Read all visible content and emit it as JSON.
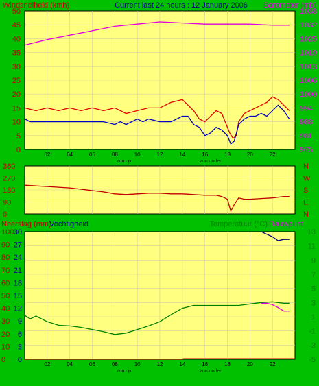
{
  "colors": {
    "background": "#00c000",
    "plot_bg": "#ffff80",
    "grid": "#cfcf9a",
    "wind_label": "#c00000",
    "baro_label": "#e000e0",
    "title": "#000080",
    "dir_label": "#c00000",
    "rain_label": "#c00000",
    "hum_label": "#000080",
    "temp_label": "#008000"
  },
  "chart_data": [
    {
      "id": "wind-baro",
      "type": "line",
      "title": "Current last 24 hours : 12 January 2006",
      "left_label": "Windsnelheid (kmh)",
      "right_label": "Barometer (mb)",
      "x_ticks": [
        "02",
        "04",
        "06",
        "08",
        "10",
        "12",
        "14",
        "16",
        "18",
        "20",
        "22"
      ],
      "annotations": [
        "zon op",
        "zon onder"
      ],
      "y_left_ticks": [
        "0",
        "5",
        "10",
        "15",
        "20",
        "25",
        "30",
        "35",
        "40",
        "45",
        "50"
      ],
      "y_left_range": [
        0,
        50
      ],
      "y_right_ticks": [
        "975",
        "981",
        "988",
        "994",
        "1000",
        "1006",
        "1013",
        "1019",
        "1025",
        "1032",
        "1038"
      ],
      "y_right_range": [
        975,
        1038
      ],
      "grid": true,
      "series": [
        {
          "role": "wind-gust",
          "axis": "left",
          "color": "#e00000",
          "x": [
            0,
            1,
            2,
            3,
            4,
            5,
            6,
            7,
            8,
            9,
            10,
            11,
            12,
            13,
            14,
            15,
            15.5,
            16,
            16.5,
            17,
            17.5,
            18,
            18.2,
            18.5,
            18.8,
            19,
            19.5,
            20,
            20.5,
            21,
            21.5,
            22,
            22.5,
            23,
            23.5
          ],
          "y": [
            15,
            14,
            15,
            14,
            15,
            14,
            15,
            14,
            15,
            13,
            14,
            15,
            15,
            17,
            18,
            14,
            11,
            10,
            12,
            14,
            13,
            8,
            6,
            4,
            5,
            10,
            13,
            14,
            15,
            16,
            17,
            19,
            18,
            16,
            14
          ]
        },
        {
          "role": "wind-speed",
          "axis": "left",
          "color": "#0000c0",
          "x": [
            0,
            0.5,
            1,
            2,
            3,
            4,
            5,
            6,
            7,
            8,
            8.5,
            9,
            10,
            10.5,
            11,
            12,
            13,
            14,
            14.5,
            15,
            15.5,
            16,
            16.5,
            17,
            17.5,
            18,
            18.3,
            18.6,
            19,
            19.5,
            20,
            20.5,
            21,
            21.5,
            22,
            22.5,
            23,
            23.5
          ],
          "y": [
            11,
            10,
            10,
            10,
            10,
            10,
            10,
            10,
            10,
            9,
            10,
            9,
            11,
            10,
            11,
            10,
            10,
            12,
            12,
            9,
            8,
            5,
            6,
            8,
            7,
            5,
            2,
            3,
            9,
            11,
            12,
            12,
            13,
            12,
            14,
            16,
            14,
            11
          ]
        },
        {
          "role": "barometer",
          "axis": "right",
          "color": "#e000e0",
          "x": [
            0,
            2,
            4,
            6,
            8,
            10,
            12,
            14,
            16,
            18,
            20,
            22,
            23.5
          ],
          "y": [
            1022.5,
            1025,
            1027,
            1029,
            1031,
            1032,
            1033,
            1032.5,
            1032,
            1032,
            1032,
            1031.5,
            1031.5
          ]
        }
      ]
    },
    {
      "id": "wind-direction",
      "type": "line",
      "left_ticks": [
        "0",
        "90",
        "180",
        "270",
        "360"
      ],
      "y_range": [
        0,
        360
      ],
      "right_letters": [
        "N",
        "W",
        "S",
        "E",
        "N"
      ],
      "grid": true,
      "series": [
        {
          "role": "direction",
          "color": "#c00000",
          "x": [
            0,
            1,
            2,
            3,
            4,
            5,
            6,
            7,
            8,
            9,
            10,
            11,
            12,
            13,
            14,
            15,
            16,
            17,
            17.5,
            18,
            18.3,
            18.6,
            19,
            19.5,
            20,
            21,
            22,
            23,
            23.5
          ],
          "y": [
            215,
            210,
            205,
            200,
            195,
            185,
            175,
            165,
            150,
            145,
            150,
            155,
            155,
            150,
            150,
            145,
            140,
            140,
            130,
            110,
            20,
            70,
            120,
            110,
            110,
            115,
            120,
            130,
            130
          ]
        }
      ]
    },
    {
      "id": "rain-hum-temp",
      "type": "line",
      "left_label": "Neerslag (mm)",
      "left_label_2": "Vochtigheid",
      "right_label": "Temperatuur (°C)",
      "right_label_2": "Dauwpunt",
      "x_ticks": [
        "02",
        "04",
        "06",
        "08",
        "10",
        "12",
        "14",
        "16",
        "18",
        "20",
        "22"
      ],
      "annotations": [
        "zon op",
        "zon onder"
      ],
      "y_left_outer_ticks": [
        "0",
        "10",
        "20",
        "30",
        "40",
        "50",
        "60",
        "70",
        "80",
        "90",
        "100"
      ],
      "y_left_inner_ticks": [
        "0",
        "3",
        "6",
        "9",
        "12",
        "15",
        "18",
        "21",
        "24",
        "27",
        "30"
      ],
      "y_right_ticks": [
        "-5",
        "-3",
        "-1",
        "1",
        "3",
        "5",
        "7",
        "9",
        "11",
        "13"
      ],
      "y_left_range": [
        0,
        100
      ],
      "y_right_range": [
        -5,
        13
      ],
      "grid": true,
      "series": [
        {
          "role": "rain",
          "axis": "left",
          "color": "#c00000",
          "x": [
            0,
            14,
            14.1,
            24
          ],
          "y": [
            0,
            0,
            0.5,
            0.5
          ]
        },
        {
          "role": "humidity",
          "axis": "left",
          "color": "#000080",
          "x": [
            21,
            21.5,
            22,
            22.5,
            23,
            23.5
          ],
          "y": [
            100,
            98,
            96,
            93,
            94,
            94
          ]
        },
        {
          "role": "temperature",
          "axis": "right",
          "color": "#008000",
          "x": [
            0,
            0.5,
            1,
            2,
            3,
            4,
            5,
            6,
            7,
            8,
            9,
            10,
            11,
            12,
            13,
            14,
            15,
            16,
            17,
            18,
            19,
            20,
            21,
            22,
            23,
            23.5
          ],
          "y": [
            1.2,
            0.7,
            1.1,
            0.3,
            -0.2,
            -0.3,
            -0.5,
            -0.8,
            -1.1,
            -1.5,
            -1.3,
            -0.8,
            -0.3,
            0.3,
            1.3,
            2.2,
            2.6,
            2.6,
            2.6,
            2.6,
            2.6,
            2.8,
            3.0,
            3.1,
            2.9,
            2.9
          ]
        },
        {
          "role": "dewpoint",
          "axis": "right",
          "color": "#e000e0",
          "x": [
            21,
            21.5,
            22,
            22.5,
            23,
            23.5
          ],
          "y": [
            2.9,
            2.9,
            2.7,
            2.3,
            1.8,
            1.8
          ]
        }
      ]
    }
  ]
}
